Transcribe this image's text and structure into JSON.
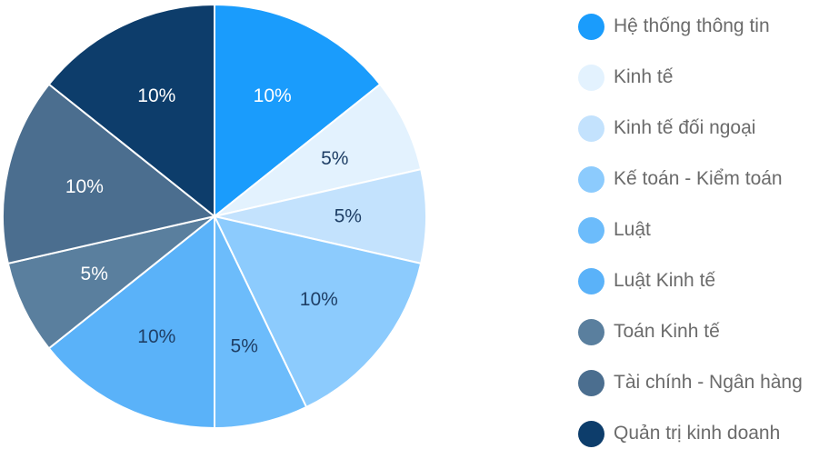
{
  "chart_data": {
    "type": "pie",
    "slices": [
      {
        "label": "Hệ thống thông tin",
        "value": 10,
        "data_label": "10%",
        "color": "#1a9cfc",
        "label_color": "#ffffff"
      },
      {
        "label": "Kinh tế",
        "value": 5,
        "data_label": "5%",
        "color": "#e3f2fe",
        "label_color": "#1f3f66"
      },
      {
        "label": "Kinh tế đối ngoại",
        "value": 5,
        "data_label": "5%",
        "color": "#c3e2fd",
        "label_color": "#1f3f66"
      },
      {
        "label": "Kế toán - Kiểm toán",
        "value": 10,
        "data_label": "10%",
        "color": "#8ccbfd",
        "label_color": "#1f3f66"
      },
      {
        "label": "Luật",
        "value": 5,
        "data_label": "5%",
        "color": "#6cbcfb",
        "label_color": "#1f3f66"
      },
      {
        "label": "Luật Kinh tế",
        "value": 10,
        "data_label": "10%",
        "color": "#5ab2f9",
        "label_color": "#1f3f66"
      },
      {
        "label": "Toán Kinh tế",
        "value": 5,
        "data_label": "5%",
        "color": "#5a7f9e",
        "label_color": "#ffffff"
      },
      {
        "label": "Tài chính - Ngân hàng",
        "value": 10,
        "data_label": "10%",
        "color": "#4b6e8f",
        "label_color": "#ffffff"
      },
      {
        "label": "Quản trị kinh doanh",
        "value": 10,
        "data_label": "10%",
        "color": "#0d3d6b",
        "label_color": "#ffffff"
      }
    ],
    "legend_position": "right"
  }
}
